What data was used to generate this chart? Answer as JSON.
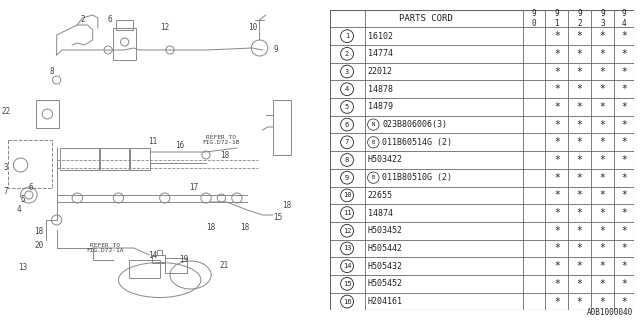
{
  "title": "A0B1000040",
  "header": "PARTS CORD",
  "year_cols": [
    "9\n0",
    "9\n1",
    "9\n2",
    "9\n3",
    "9\n4"
  ],
  "rows": [
    {
      "num": "1",
      "part": "16102",
      "prefix": "",
      "stars": [
        false,
        true,
        true,
        true,
        true
      ]
    },
    {
      "num": "2",
      "part": "14774",
      "prefix": "",
      "stars": [
        false,
        true,
        true,
        true,
        true
      ]
    },
    {
      "num": "3",
      "part": "22012",
      "prefix": "",
      "stars": [
        false,
        true,
        true,
        true,
        true
      ]
    },
    {
      "num": "4",
      "part": "14878",
      "prefix": "",
      "stars": [
        false,
        true,
        true,
        true,
        true
      ]
    },
    {
      "num": "5",
      "part": "14879",
      "prefix": "",
      "stars": [
        false,
        true,
        true,
        true,
        true
      ]
    },
    {
      "num": "6",
      "part": "023B806006(3)",
      "prefix": "N",
      "stars": [
        false,
        true,
        true,
        true,
        true
      ]
    },
    {
      "num": "7",
      "part": "011B60514G (2)",
      "prefix": "B",
      "stars": [
        false,
        true,
        true,
        true,
        true
      ]
    },
    {
      "num": "8",
      "part": "H503422",
      "prefix": "",
      "stars": [
        false,
        true,
        true,
        true,
        true
      ]
    },
    {
      "num": "9",
      "part": "011B80510G (2)",
      "prefix": "B",
      "stars": [
        false,
        true,
        true,
        true,
        true
      ]
    },
    {
      "num": "10",
      "part": "22655",
      "prefix": "",
      "stars": [
        false,
        true,
        true,
        true,
        true
      ]
    },
    {
      "num": "11",
      "part": "14874",
      "prefix": "",
      "stars": [
        false,
        true,
        true,
        true,
        true
      ]
    },
    {
      "num": "12",
      "part": "H503452",
      "prefix": "",
      "stars": [
        false,
        true,
        true,
        true,
        true
      ]
    },
    {
      "num": "13",
      "part": "H505442",
      "prefix": "",
      "stars": [
        false,
        true,
        true,
        true,
        true
      ]
    },
    {
      "num": "14",
      "part": "H505432",
      "prefix": "",
      "stars": [
        false,
        true,
        true,
        true,
        true
      ]
    },
    {
      "num": "15",
      "part": "H505452",
      "prefix": "",
      "stars": [
        false,
        true,
        true,
        true,
        true
      ]
    },
    {
      "num": "16",
      "part": "H204161",
      "prefix": "",
      "stars": [
        false,
        true,
        true,
        true,
        true
      ]
    }
  ],
  "bg_color": "#ffffff",
  "line_color": "#666666",
  "text_color": "#222222",
  "diag_color": "#888888",
  "font_size": 6.5
}
